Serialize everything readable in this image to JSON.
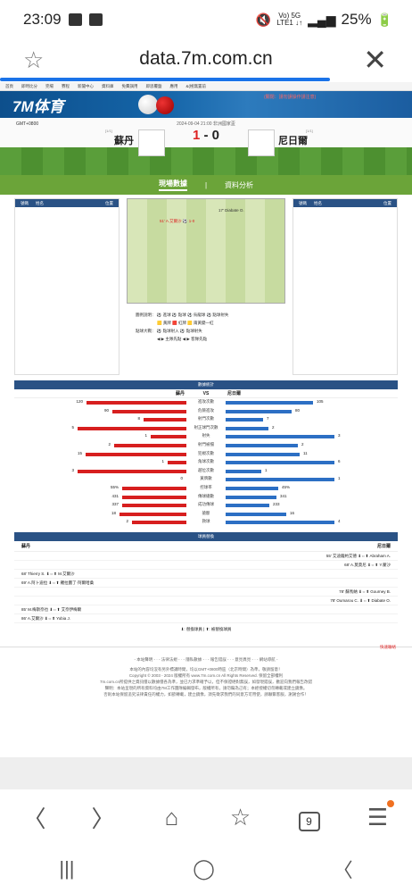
{
  "status": {
    "time": "23:09",
    "network": "Vo) 5G",
    "net_sub": "LTE1 ↓↑",
    "battery": "25%"
  },
  "browser": {
    "url": "data.7m.com.cn"
  },
  "site": {
    "topnav": [
      "首頁",
      "即時比分",
      "完場",
      "賽程",
      "新聞中心",
      "資料庫",
      "免費調用",
      "即思覆盤",
      "應用",
      "&(極無置前"
    ],
    "logo": "7M体育",
    "alert": "(關閉：請勿誤操作請注意)"
  },
  "match": {
    "gmt": "GMT+0800",
    "datetime": "2024-09-04 21:00  非洲國家盃",
    "home": "蘇丹",
    "away": "尼日爾",
    "home_rank": "[1/1]",
    "away_rank": "[1/1]",
    "home_score": "1",
    "sep": " - ",
    "away_score": "0"
  },
  "tabs": {
    "active": "現場數據",
    "other": "資料分析",
    "divider": "|"
  },
  "lineup": {
    "num": "號碼",
    "name": "姓名",
    "pos": "位置"
  },
  "pitch_events": [
    {
      "text": "17' Diabate O."
    },
    {
      "text": "51' A.艾爾沙 ⚽ 1-0"
    }
  ],
  "legend": {
    "line1": "圖例說明：  ⚽ 進球  ⚽ 點球  ⚽ 烏龍球  ⚽ 點球射失",
    "line2": "🟨 黃牌  🟥 紅牌  🟨 兩黃變一紅",
    "line3": "點球大戰：  ⚽ 點球射入  ⚽ 點球射失",
    "line4": "◀ ▶ 主隊先點  ◀ ▶ 客隊先點"
  },
  "stats": {
    "title": "數據統計",
    "home": "蘇丹",
    "vs": "VS",
    "away": "尼日爾",
    "rows": [
      {
        "name": "進攻次數",
        "home": "120",
        "away": "105",
        "h": 0.86,
        "a": 0.75
      },
      {
        "name": "危險進攻",
        "home": "90",
        "away": "80",
        "h": 0.64,
        "a": 0.57
      },
      {
        "name": "射門次數",
        "home": "8",
        "away": "7",
        "h": 0.37,
        "a": 0.32
      },
      {
        "name": "射正球門次數",
        "home": "5",
        "away": "2",
        "h": 0.94,
        "a": 0.37
      },
      {
        "name": "射失",
        "home": "1",
        "away": "3",
        "h": 0.31,
        "a": 0.94
      },
      {
        "name": "射門被擋",
        "home": "2",
        "away": "2",
        "h": 0.62,
        "a": 0.62
      },
      {
        "name": "犯規次數",
        "home": "15",
        "away": "11",
        "h": 0.87,
        "a": 0.64
      },
      {
        "name": "角球次數",
        "home": "1",
        "away": "6",
        "h": 0.16,
        "a": 0.94
      },
      {
        "name": "越位次數",
        "home": "3",
        "away": "1",
        "h": 0.94,
        "a": 0.31
      },
      {
        "name": "黃牌數",
        "home": "0",
        "away": "1",
        "h": 0,
        "a": 0.94
      },
      {
        "name": "控球率",
        "home": "55%",
        "away": "45%",
        "h": 0.55,
        "a": 0.45
      },
      {
        "name": "傳球總數",
        "home": "431",
        "away": "341",
        "h": 0.55,
        "a": 0.44
      },
      {
        "name": "成功傳球",
        "home": "337",
        "away": "233",
        "h": 0.55,
        "a": 0.38
      },
      {
        "name": "搶斷",
        "home": "18",
        "away": "16",
        "h": 0.58,
        "a": 0.52
      },
      {
        "name": "救球",
        "home": "2",
        "away": "4",
        "h": 0.47,
        "a": 0.94
      }
    ]
  },
  "subs": {
    "title": "球員替換",
    "home": "蘇丹",
    "away": "尼日爾",
    "rows": [
      {
        "side": "r",
        "text": "55' 艾迪薩約艾德 ⬇⇔⬆ Abraham A."
      },
      {
        "side": "r",
        "text": "68' A.莫莫尼 ⬇⇔⬆ Y.蒙沙"
      },
      {
        "side": "l",
        "text": "68' Thierry S. ⬇⇔⬆ M.艾爾沙"
      },
      {
        "side": "l",
        "text": "69' A.阿卜迪拉 ⬇⇔⬆ 羅拉圖了·阿爾哈桑"
      },
      {
        "side": "r",
        "text": "78' 蘇馬納 ⬇⇔⬆ Gourney B."
      },
      {
        "side": "r",
        "text": "78' Oumarou C. ⬇⇔⬆ Diabate O."
      },
      {
        "side": "l",
        "text": "85' M.梅斯奈也 ⬇⇔⬆ 艾奈伊梅爾"
      },
      {
        "side": "l",
        "text": "86' A.艾爾沙 ⬇⇔⬆ Yobia J."
      }
    ],
    "legend": "⬇: 替換球員 | ⬆: 被替換球員"
  },
  "footer": {
    "feedback": "快速聯絡",
    "links": "- 本站聲明 - · - 法律法規 - · - 隱私數據 - · - 報告錯誤 - · - 意見異見 - · - 網站導航 -",
    "l1": "本站的內容均沒有另外標識時間，均以GMT+0800時區（北京時間）為準，敬請留意！",
    "l2": "Copyright © 2003 - 2024 版權所有 www.7m.com.cn All Rights Reserved. 保留全部權利",
    "l3": "7m.com.cn所提供之資訊僅以數據僅各為準，並已力求準確予以，但不保證絕對無誤，如發現錯誤，歡迎向我們報告改錯",
    "l4": "聲明：本站呈現的所有資料均由7M工作團隊編輯發布，版權所有，請勿竊為己有；本經授權切勿轉載或建立鏡像。",
    "l5": "否則本站保留追究法律責任的權力，如欲轉載，建立鏡像，須先徵求我們的同意方可用使，請聯繫客服，謝謝合作！"
  },
  "browser_nav": {
    "back": "〈",
    "forward": "〉",
    "home": "⌂",
    "tabs": "9",
    "menu": "☰"
  },
  "sys_nav": {
    "recent": "|||",
    "home": "◯",
    "back": "〈"
  }
}
